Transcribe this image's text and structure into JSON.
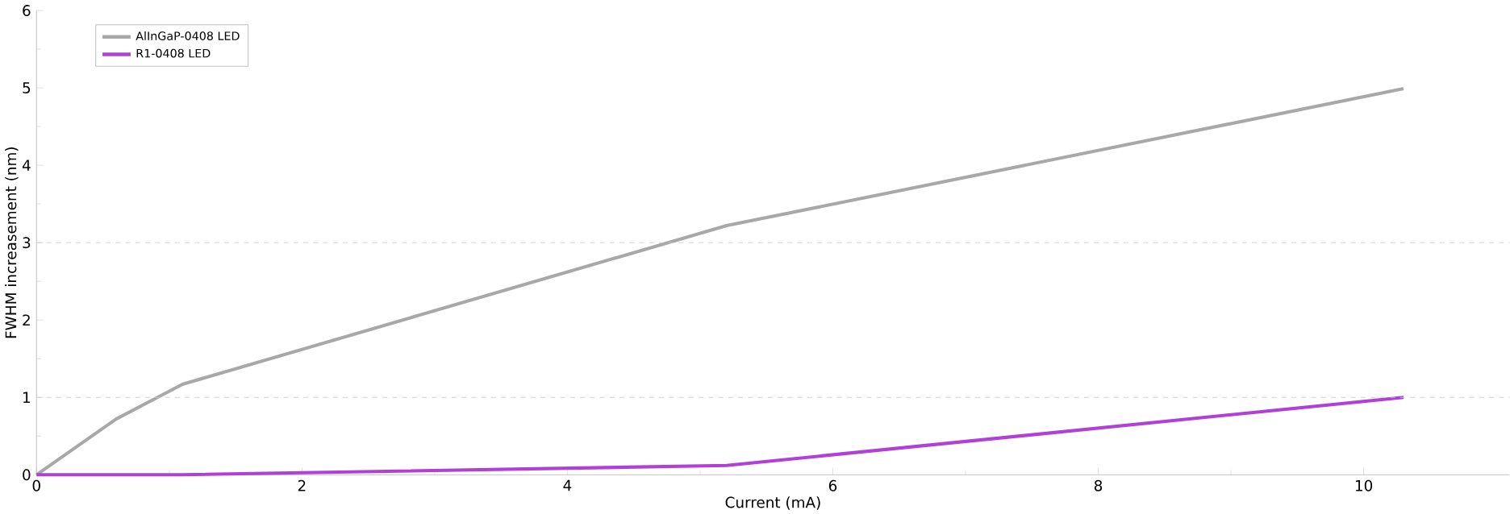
{
  "chart_data": {
    "type": "line",
    "xlabel": "Current (mA)",
    "ylabel": "FWHM increasement (nm)",
    "xlim": [
      0,
      11.1
    ],
    "ylim": [
      0,
      6
    ],
    "xticks": [
      0,
      2,
      4,
      6,
      8,
      10
    ],
    "yticks": [
      0,
      1,
      2,
      3,
      4,
      5,
      6
    ],
    "legend": "top left",
    "marker": "none",
    "line_style": "solid",
    "ref_lines": [
      {
        "axis": "y",
        "value": 1,
        "color": "#c8c8c8",
        "line_style": "dashed"
      },
      {
        "axis": "y",
        "value": 3,
        "color": "#c8c8c8",
        "line_style": "dashed"
      }
    ],
    "series": [
      {
        "name": "AlInGaP-0408 LED",
        "color": "#a8a8a8",
        "x": [
          0,
          0.6,
          1.1,
          5.2,
          10.3
        ],
        "values": [
          0,
          0.72,
          1.17,
          3.22,
          4.99
        ]
      },
      {
        "name": "R1-0408 LED",
        "color": "#b040d8",
        "x": [
          0,
          1.1,
          5.2,
          10.3
        ],
        "values": [
          0,
          0,
          0.12,
          1.0
        ]
      }
    ]
  }
}
